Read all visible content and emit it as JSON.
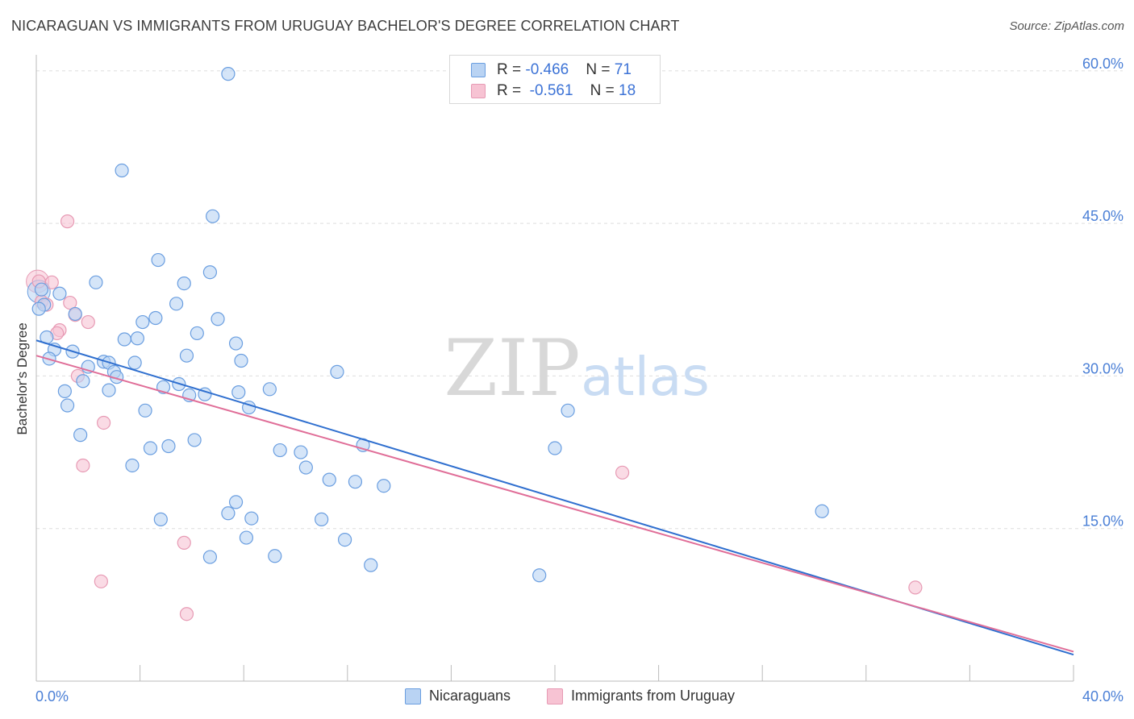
{
  "header": {
    "title": "NICARAGUAN VS IMMIGRANTS FROM URUGUAY BACHELOR'S DEGREE CORRELATION CHART",
    "source": "Source: ZipAtlas.com"
  },
  "watermark": {
    "zip": "ZIP",
    "atlas": "atlas"
  },
  "legend_top": {
    "rows": [
      {
        "r_label": "R = ",
        "r_value": "-0.466",
        "n_label": "N = ",
        "n_value": "71"
      },
      {
        "r_label": "R = ",
        "r_value": "-0.561",
        "n_label": "N = ",
        "n_value": "18"
      }
    ]
  },
  "chart_data": {
    "type": "scatter",
    "title": "NICARAGUAN VS IMMIGRANTS FROM URUGUAY BACHELOR'S DEGREE CORRELATION CHART",
    "xlabel": "",
    "ylabel": "Bachelor's Degree",
    "xlim": [
      0,
      40
    ],
    "ylim": [
      0,
      63
    ],
    "x_tick_labels": [
      {
        "value": 0,
        "label": "0.0%"
      },
      {
        "value": 40,
        "label": "40.0%"
      }
    ],
    "y_tick_labels": [
      {
        "value": 15,
        "label": "15.0%"
      },
      {
        "value": 30,
        "label": "30.0%"
      },
      {
        "value": 45,
        "label": "45.0%"
      },
      {
        "value": 60,
        "label": "60.0%"
      }
    ],
    "grid": true,
    "legend_position": "bottom-center",
    "colors": {
      "blue_fill": "#b9d3f3",
      "blue_stroke": "#6a9ee0",
      "blue_line": "#2f6fcf",
      "pink_fill": "#f7c3d3",
      "pink_stroke": "#e79ab4",
      "pink_line": "#e06e98",
      "grid": "#dddddd",
      "axis": "#bbbbbb",
      "tick_text": "#4a7fd6"
    },
    "series": [
      {
        "name": "Nicaraguans",
        "r": -0.466,
        "n": 71,
        "trend": {
          "x": [
            0,
            40
          ],
          "y": [
            33.5,
            2.6
          ]
        },
        "points": [
          [
            7.4,
            59.7
          ],
          [
            3.3,
            50.2
          ],
          [
            6.8,
            45.7
          ],
          [
            4.7,
            41.4
          ],
          [
            6.7,
            40.2
          ],
          [
            2.3,
            39.2
          ],
          [
            5.7,
            39.1
          ],
          [
            0.2,
            38.5
          ],
          [
            0.9,
            38.1
          ],
          [
            0.3,
            37.0
          ],
          [
            0.1,
            36.6
          ],
          [
            5.4,
            37.1
          ],
          [
            1.5,
            36.1
          ],
          [
            4.6,
            35.7
          ],
          [
            7.0,
            35.6
          ],
          [
            4.1,
            35.3
          ],
          [
            6.2,
            34.2
          ],
          [
            0.4,
            33.8
          ],
          [
            3.4,
            33.6
          ],
          [
            3.9,
            33.7
          ],
          [
            7.7,
            33.2
          ],
          [
            0.7,
            32.6
          ],
          [
            1.4,
            32.4
          ],
          [
            5.8,
            32.0
          ],
          [
            0.5,
            31.7
          ],
          [
            2.6,
            31.4
          ],
          [
            2.8,
            31.3
          ],
          [
            3.8,
            31.3
          ],
          [
            7.9,
            31.5
          ],
          [
            2.0,
            30.9
          ],
          [
            3.0,
            30.4
          ],
          [
            3.1,
            29.9
          ],
          [
            1.8,
            29.5
          ],
          [
            11.6,
            30.4
          ],
          [
            5.5,
            29.2
          ],
          [
            4.9,
            28.9
          ],
          [
            9.0,
            28.7
          ],
          [
            1.1,
            28.5
          ],
          [
            2.8,
            28.6
          ],
          [
            7.8,
            28.4
          ],
          [
            5.9,
            28.1
          ],
          [
            6.5,
            28.2
          ],
          [
            1.2,
            27.1
          ],
          [
            8.2,
            26.9
          ],
          [
            4.2,
            26.6
          ],
          [
            20.5,
            26.6
          ],
          [
            1.7,
            24.2
          ],
          [
            6.1,
            23.7
          ],
          [
            5.1,
            23.1
          ],
          [
            4.4,
            22.9
          ],
          [
            12.6,
            23.2
          ],
          [
            9.4,
            22.7
          ],
          [
            10.2,
            22.5
          ],
          [
            20.0,
            22.9
          ],
          [
            3.7,
            21.2
          ],
          [
            10.4,
            21.0
          ],
          [
            11.3,
            19.8
          ],
          [
            12.3,
            19.6
          ],
          [
            13.4,
            19.2
          ],
          [
            7.7,
            17.6
          ],
          [
            7.4,
            16.5
          ],
          [
            4.8,
            15.9
          ],
          [
            8.3,
            16.0
          ],
          [
            11.0,
            15.9
          ],
          [
            30.3,
            16.7
          ],
          [
            8.1,
            14.1
          ],
          [
            11.9,
            13.9
          ],
          [
            6.7,
            12.2
          ],
          [
            9.2,
            12.3
          ],
          [
            12.9,
            11.4
          ],
          [
            19.4,
            10.4
          ]
        ]
      },
      {
        "name": "Immigrants from Uruguay",
        "r": -0.561,
        "n": 18,
        "trend": {
          "x": [
            0,
            40
          ],
          "y": [
            32.0,
            2.9
          ]
        },
        "points": [
          [
            1.2,
            45.2
          ],
          [
            0.1,
            39.3
          ],
          [
            0.6,
            39.2
          ],
          [
            0.2,
            37.3
          ],
          [
            0.4,
            37.0
          ],
          [
            1.3,
            37.2
          ],
          [
            1.5,
            36.0
          ],
          [
            2.0,
            35.3
          ],
          [
            0.9,
            34.5
          ],
          [
            0.8,
            34.2
          ],
          [
            1.6,
            30.0
          ],
          [
            2.6,
            25.4
          ],
          [
            1.8,
            21.2
          ],
          [
            22.6,
            20.5
          ],
          [
            5.7,
            13.6
          ],
          [
            2.5,
            9.8
          ],
          [
            5.8,
            6.6
          ],
          [
            33.9,
            9.2
          ]
        ]
      }
    ]
  }
}
